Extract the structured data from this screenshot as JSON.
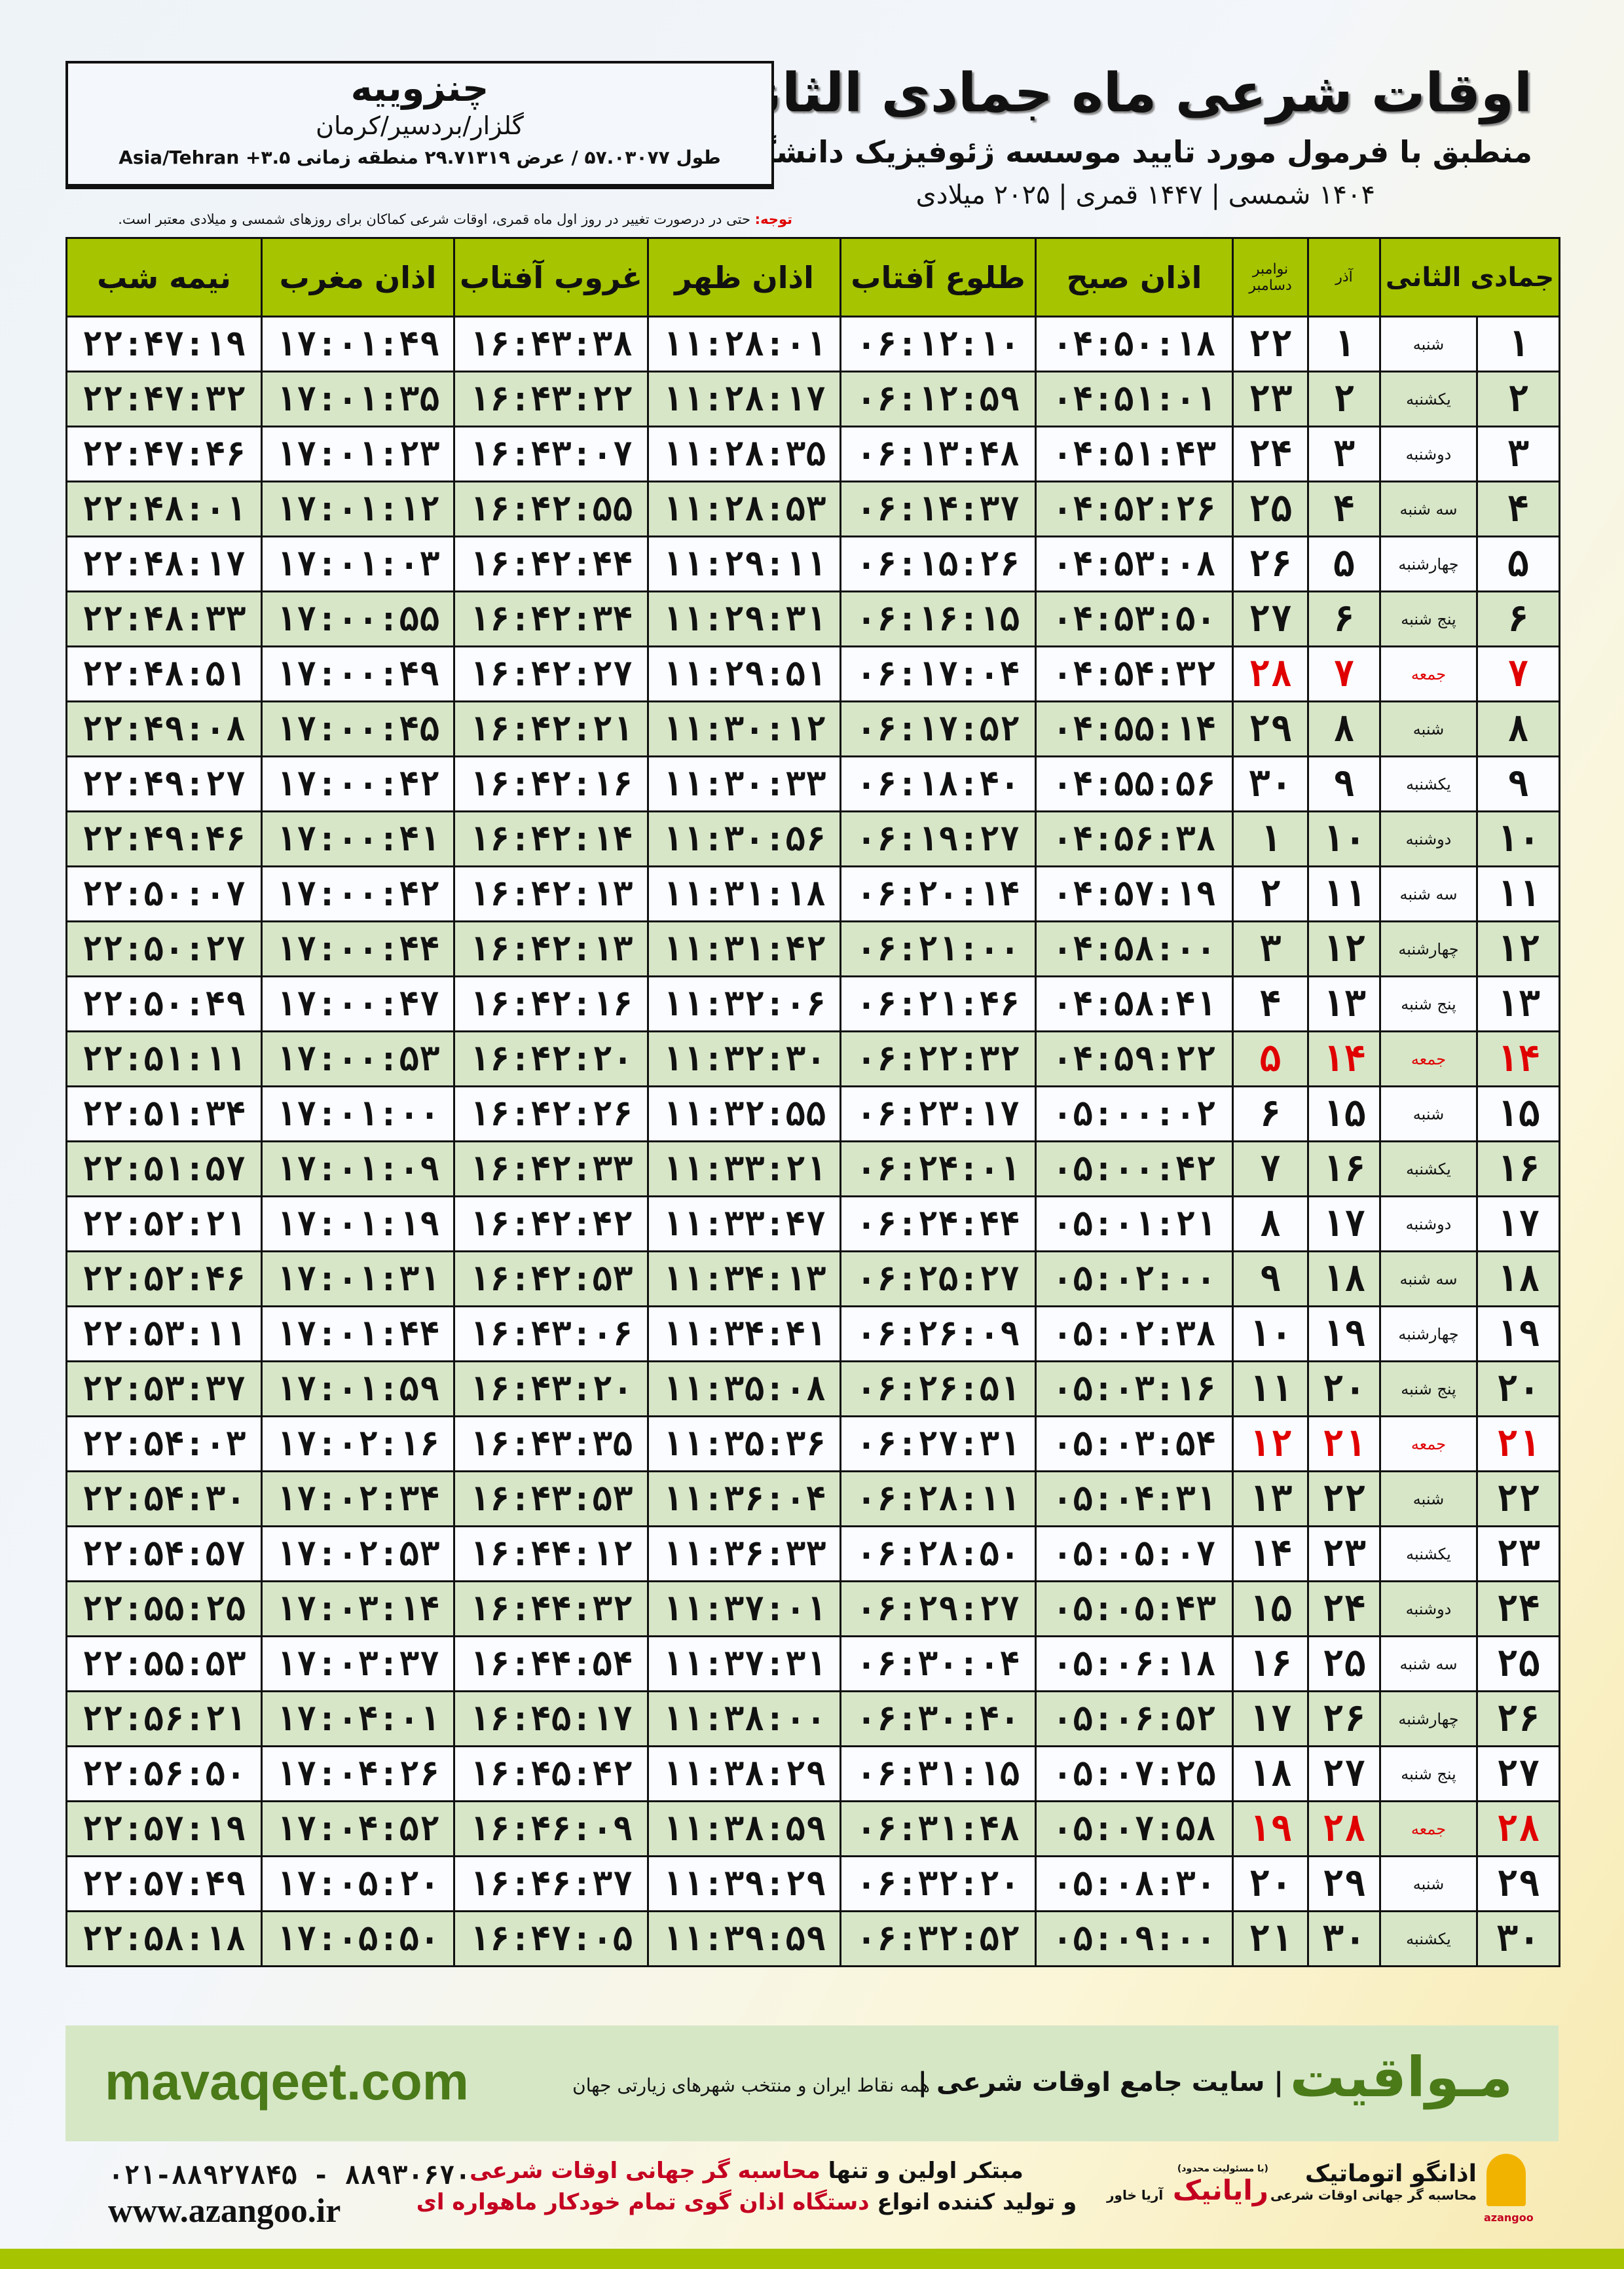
{
  "header": {
    "title": "اوقات شرعی ماه جمادی الثانی",
    "subtitle": "منطبق با فرمول مورد تایید موسسه ژئوفیزیک دانشگاه تهران",
    "years": "۱۴۰۴ شمسی | ۱۴۴۷ قمری | ۲۰۲۵ میلادی"
  },
  "location": {
    "city": "چنزوییه",
    "region": "گلزار/بردسیر/کرمان",
    "coords": "طول ۵۷.۰۳۰۷۷ / عرض ۲۹.۷۱۳۱۹ منطقه زمانی ۳.۵+ Asia/Tehran"
  },
  "note": {
    "label": "توجه:",
    "text": " حتی در درصورت تغییر در روز اول ماه قمری، اوقات شرعی کماکان برای روزهای شمسی و میلادی معتبر است."
  },
  "table": {
    "headers": {
      "midnight": "نیمه شب",
      "maghrib": "اذان مغرب",
      "sunset": "غروب آفتاب",
      "dhuhr": "اذان ظهر",
      "sunrise": "طلوع آفتاب",
      "fajr": "اذان صبح",
      "gregorian": "نوامبر دسامبر",
      "shamsi": "آذر",
      "hijri": "جمادی الثانی"
    },
    "colors": {
      "header": "#a6c400",
      "alt_row": "#d8e6c8",
      "friday": "#e00000"
    },
    "rows": [
      {
        "d": "۱",
        "wd": "شنبه",
        "az": "۱",
        "g": "۲۲",
        "t": [
          "۰۴:۵۰:۱۸",
          "۰۶:۱۲:۱۰",
          "۱۱:۲۸:۰۱",
          "۱۶:۴۳:۳۸",
          "۱۷:۰۱:۴۹",
          "۲۲:۴۷:۱۹"
        ]
      },
      {
        "d": "۲",
        "wd": "یکشنبه",
        "az": "۲",
        "g": "۲۳",
        "t": [
          "۰۴:۵۱:۰۱",
          "۰۶:۱۲:۵۹",
          "۱۱:۲۸:۱۷",
          "۱۶:۴۳:۲۲",
          "۱۷:۰۱:۳۵",
          "۲۲:۴۷:۳۲"
        ]
      },
      {
        "d": "۳",
        "wd": "دوشنبه",
        "az": "۳",
        "g": "۲۴",
        "t": [
          "۰۴:۵۱:۴۳",
          "۰۶:۱۳:۴۸",
          "۱۱:۲۸:۳۵",
          "۱۶:۴۳:۰۷",
          "۱۷:۰۱:۲۳",
          "۲۲:۴۷:۴۶"
        ]
      },
      {
        "d": "۴",
        "wd": "سه شنبه",
        "az": "۴",
        "g": "۲۵",
        "t": [
          "۰۴:۵۲:۲۶",
          "۰۶:۱۴:۳۷",
          "۱۱:۲۸:۵۳",
          "۱۶:۴۲:۵۵",
          "۱۷:۰۱:۱۲",
          "۲۲:۴۸:۰۱"
        ]
      },
      {
        "d": "۵",
        "wd": "چهارشنبه",
        "az": "۵",
        "g": "۲۶",
        "t": [
          "۰۴:۵۳:۰۸",
          "۰۶:۱۵:۲۶",
          "۱۱:۲۹:۱۱",
          "۱۶:۴۲:۴۴",
          "۱۷:۰۱:۰۳",
          "۲۲:۴۸:۱۷"
        ]
      },
      {
        "d": "۶",
        "wd": "پنج شنبه",
        "az": "۶",
        "g": "۲۷",
        "t": [
          "۰۴:۵۳:۵۰",
          "۰۶:۱۶:۱۵",
          "۱۱:۲۹:۳۱",
          "۱۶:۴۲:۳۴",
          "۱۷:۰۰:۵۵",
          "۲۲:۴۸:۳۳"
        ]
      },
      {
        "d": "۷",
        "wd": "جمعه",
        "az": "۷",
        "g": "۲۸",
        "fri": true,
        "t": [
          "۰۴:۵۴:۳۲",
          "۰۶:۱۷:۰۴",
          "۱۱:۲۹:۵۱",
          "۱۶:۴۲:۲۷",
          "۱۷:۰۰:۴۹",
          "۲۲:۴۸:۵۱"
        ]
      },
      {
        "d": "۸",
        "wd": "شنبه",
        "az": "۸",
        "g": "۲۹",
        "t": [
          "۰۴:۵۵:۱۴",
          "۰۶:۱۷:۵۲",
          "۱۱:۳۰:۱۲",
          "۱۶:۴۲:۲۱",
          "۱۷:۰۰:۴۵",
          "۲۲:۴۹:۰۸"
        ]
      },
      {
        "d": "۹",
        "wd": "یکشنبه",
        "az": "۹",
        "g": "۳۰",
        "t": [
          "۰۴:۵۵:۵۶",
          "۰۶:۱۸:۴۰",
          "۱۱:۳۰:۳۳",
          "۱۶:۴۲:۱۶",
          "۱۷:۰۰:۴۲",
          "۲۲:۴۹:۲۷"
        ]
      },
      {
        "d": "۱۰",
        "wd": "دوشنبه",
        "az": "۱۰",
        "g": "۱",
        "t": [
          "۰۴:۵۶:۳۸",
          "۰۶:۱۹:۲۷",
          "۱۱:۳۰:۵۶",
          "۱۶:۴۲:۱۴",
          "۱۷:۰۰:۴۱",
          "۲۲:۴۹:۴۶"
        ]
      },
      {
        "d": "۱۱",
        "wd": "سه شنبه",
        "az": "۱۱",
        "g": "۲",
        "t": [
          "۰۴:۵۷:۱۹",
          "۰۶:۲۰:۱۴",
          "۱۱:۳۱:۱۸",
          "۱۶:۴۲:۱۳",
          "۱۷:۰۰:۴۲",
          "۲۲:۵۰:۰۷"
        ]
      },
      {
        "d": "۱۲",
        "wd": "چهارشنبه",
        "az": "۱۲",
        "g": "۳",
        "t": [
          "۰۴:۵۸:۰۰",
          "۰۶:۲۱:۰۰",
          "۱۱:۳۱:۴۲",
          "۱۶:۴۲:۱۳",
          "۱۷:۰۰:۴۴",
          "۲۲:۵۰:۲۷"
        ]
      },
      {
        "d": "۱۳",
        "wd": "پنج شنبه",
        "az": "۱۳",
        "g": "۴",
        "t": [
          "۰۴:۵۸:۴۱",
          "۰۶:۲۱:۴۶",
          "۱۱:۳۲:۰۶",
          "۱۶:۴۲:۱۶",
          "۱۷:۰۰:۴۷",
          "۲۲:۵۰:۴۹"
        ]
      },
      {
        "d": "۱۴",
        "wd": "جمعه",
        "az": "۱۴",
        "g": "۵",
        "fri": true,
        "t": [
          "۰۴:۵۹:۲۲",
          "۰۶:۲۲:۳۲",
          "۱۱:۳۲:۳۰",
          "۱۶:۴۲:۲۰",
          "۱۷:۰۰:۵۳",
          "۲۲:۵۱:۱۱"
        ]
      },
      {
        "d": "۱۵",
        "wd": "شنبه",
        "az": "۱۵",
        "g": "۶",
        "t": [
          "۰۵:۰۰:۰۲",
          "۰۶:۲۳:۱۷",
          "۱۱:۳۲:۵۵",
          "۱۶:۴۲:۲۶",
          "۱۷:۰۱:۰۰",
          "۲۲:۵۱:۳۴"
        ]
      },
      {
        "d": "۱۶",
        "wd": "یکشنبه",
        "az": "۱۶",
        "g": "۷",
        "t": [
          "۰۵:۰۰:۴۲",
          "۰۶:۲۴:۰۱",
          "۱۱:۳۳:۲۱",
          "۱۶:۴۲:۳۳",
          "۱۷:۰۱:۰۹",
          "۲۲:۵۱:۵۷"
        ]
      },
      {
        "d": "۱۷",
        "wd": "دوشنبه",
        "az": "۱۷",
        "g": "۸",
        "t": [
          "۰۵:۰۱:۲۱",
          "۰۶:۲۴:۴۴",
          "۱۱:۳۳:۴۷",
          "۱۶:۴۲:۴۲",
          "۱۷:۰۱:۱۹",
          "۲۲:۵۲:۲۱"
        ]
      },
      {
        "d": "۱۸",
        "wd": "سه شنبه",
        "az": "۱۸",
        "g": "۹",
        "t": [
          "۰۵:۰۲:۰۰",
          "۰۶:۲۵:۲۷",
          "۱۱:۳۴:۱۳",
          "۱۶:۴۲:۵۳",
          "۱۷:۰۱:۳۱",
          "۲۲:۵۲:۴۶"
        ]
      },
      {
        "d": "۱۹",
        "wd": "چهارشنبه",
        "az": "۱۹",
        "g": "۱۰",
        "t": [
          "۰۵:۰۲:۳۸",
          "۰۶:۲۶:۰۹",
          "۱۱:۳۴:۴۱",
          "۱۶:۴۳:۰۶",
          "۱۷:۰۱:۴۴",
          "۲۲:۵۳:۱۱"
        ]
      },
      {
        "d": "۲۰",
        "wd": "پنج شنبه",
        "az": "۲۰",
        "g": "۱۱",
        "t": [
          "۰۵:۰۳:۱۶",
          "۰۶:۲۶:۵۱",
          "۱۱:۳۵:۰۸",
          "۱۶:۴۳:۲۰",
          "۱۷:۰۱:۵۹",
          "۲۲:۵۳:۳۷"
        ]
      },
      {
        "d": "۲۱",
        "wd": "جمعه",
        "az": "۲۱",
        "g": "۱۲",
        "fri": true,
        "t": [
          "۰۵:۰۳:۵۴",
          "۰۶:۲۷:۳۱",
          "۱۱:۳۵:۳۶",
          "۱۶:۴۳:۳۵",
          "۱۷:۰۲:۱۶",
          "۲۲:۵۴:۰۳"
        ]
      },
      {
        "d": "۲۲",
        "wd": "شنبه",
        "az": "۲۲",
        "g": "۱۳",
        "t": [
          "۰۵:۰۴:۳۱",
          "۰۶:۲۸:۱۱",
          "۱۱:۳۶:۰۴",
          "۱۶:۴۳:۵۳",
          "۱۷:۰۲:۳۴",
          "۲۲:۵۴:۳۰"
        ]
      },
      {
        "d": "۲۳",
        "wd": "یکشنبه",
        "az": "۲۳",
        "g": "۱۴",
        "t": [
          "۰۵:۰۵:۰۷",
          "۰۶:۲۸:۵۰",
          "۱۱:۳۶:۳۳",
          "۱۶:۴۴:۱۲",
          "۱۷:۰۲:۵۳",
          "۲۲:۵۴:۵۷"
        ]
      },
      {
        "d": "۲۴",
        "wd": "دوشنبه",
        "az": "۲۴",
        "g": "۱۵",
        "t": [
          "۰۵:۰۵:۴۳",
          "۰۶:۲۹:۲۷",
          "۱۱:۳۷:۰۱",
          "۱۶:۴۴:۳۲",
          "۱۷:۰۳:۱۴",
          "۲۲:۵۵:۲۵"
        ]
      },
      {
        "d": "۲۵",
        "wd": "سه شنبه",
        "az": "۲۵",
        "g": "۱۶",
        "t": [
          "۰۵:۰۶:۱۸",
          "۰۶:۳۰:۰۴",
          "۱۱:۳۷:۳۱",
          "۱۶:۴۴:۵۴",
          "۱۷:۰۳:۳۷",
          "۲۲:۵۵:۵۳"
        ]
      },
      {
        "d": "۲۶",
        "wd": "چهارشنبه",
        "az": "۲۶",
        "g": "۱۷",
        "t": [
          "۰۵:۰۶:۵۲",
          "۰۶:۳۰:۴۰",
          "۱۱:۳۸:۰۰",
          "۱۶:۴۵:۱۷",
          "۱۷:۰۴:۰۱",
          "۲۲:۵۶:۲۱"
        ]
      },
      {
        "d": "۲۷",
        "wd": "پنج شنبه",
        "az": "۲۷",
        "g": "۱۸",
        "t": [
          "۰۵:۰۷:۲۵",
          "۰۶:۳۱:۱۵",
          "۱۱:۳۸:۲۹",
          "۱۶:۴۵:۴۲",
          "۱۷:۰۴:۲۶",
          "۲۲:۵۶:۵۰"
        ]
      },
      {
        "d": "۲۸",
        "wd": "جمعه",
        "az": "۲۸",
        "g": "۱۹",
        "fri": true,
        "t": [
          "۰۵:۰۷:۵۸",
          "۰۶:۳۱:۴۸",
          "۱۱:۳۸:۵۹",
          "۱۶:۴۶:۰۹",
          "۱۷:۰۴:۵۲",
          "۲۲:۵۷:۱۹"
        ]
      },
      {
        "d": "۲۹",
        "wd": "شنبه",
        "az": "۲۹",
        "g": "۲۰",
        "t": [
          "۰۵:۰۸:۳۰",
          "۰۶:۳۲:۲۰",
          "۱۱:۳۹:۲۹",
          "۱۶:۴۶:۳۷",
          "۱۷:۰۵:۲۰",
          "۲۲:۵۷:۴۹"
        ]
      },
      {
        "d": "۳۰",
        "wd": "یکشنبه",
        "az": "۳۰",
        "g": "۲۱",
        "t": [
          "۰۵:۰۹:۰۰",
          "۰۶:۳۲:۵۲",
          "۱۱:۳۹:۵۹",
          "۱۶:۴۷:۰۵",
          "۱۷:۰۵:۵۰",
          "۲۲:۵۸:۱۸"
        ]
      }
    ]
  },
  "banner": {
    "site": "mavaqeet.com",
    "brand": "مـواقیت",
    "slogan": "| سایت جامع اوقات شرعی |",
    "slogan2": "همه نقاط ایران و منتخب شهرهای زیارتی جهان"
  },
  "footer": {
    "phone": "۰۲۱-۸۸۹۲۷۸۴۵ - ۸۸۹۳۰۶۷۰",
    "web": "www.azangoo.ir",
    "promo1a": "مبتکر اولین و تنها ",
    "promo1b": "محاسبه گر جهانی اوقات شرعی",
    "promo2a": "و تولید کننده انواع ",
    "promo2b": "دستگاه اذان گوی تمام خودکار ماهواره ای",
    "logo1_small": "(با مسئولیت محدود)",
    "logo1_side": "آریا خاور",
    "logo1": "رایانیک",
    "logo2": "اذانگو اتوماتیک",
    "logo2_small": "محاسبه گر جهانی اوقات شرعی",
    "logo2_en": "azangoo"
  }
}
